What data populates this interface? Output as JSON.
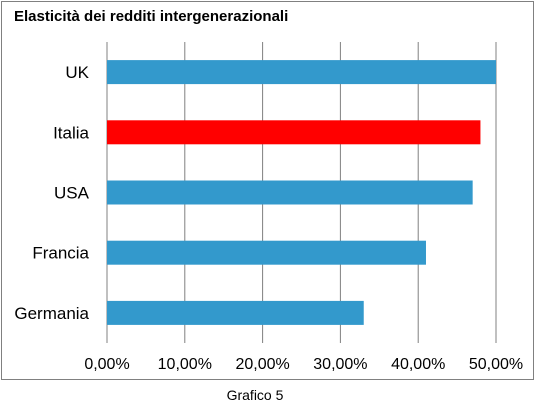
{
  "caption": "Grafico 5",
  "chart_data": {
    "type": "bar",
    "orientation": "horizontal",
    "title": "Elasticità dei redditi intergenerazionali",
    "xlabel": "",
    "ylabel": "",
    "categories": [
      "UK",
      "Italia",
      "USA",
      "Francia",
      "Germania"
    ],
    "values": [
      0.5,
      0.48,
      0.47,
      0.41,
      0.33
    ],
    "xlim": [
      0,
      0.5
    ],
    "x_ticks": [
      0,
      0.1,
      0.2,
      0.3,
      0.4,
      0.5
    ],
    "x_tick_labels": [
      "0,00%",
      "10,00%",
      "20,00%",
      "30,00%",
      "40,00%",
      "50,00%"
    ],
    "grid": "vertical",
    "legend": "none",
    "colors": {
      "default_bar": "#3399cc",
      "highlight_bar": "#ff0000",
      "highlight_category": "Italia",
      "gridline": "#808080"
    }
  }
}
